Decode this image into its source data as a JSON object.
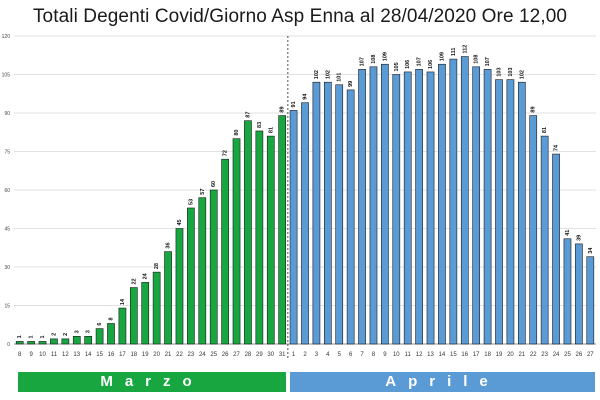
{
  "chart_data": {
    "type": "bar",
    "title": "Totali Degenti Covid/Giorno Asp Enna al 28/04/2020 Ore 12,00",
    "xlabel": "",
    "ylabel": "",
    "ylim": [
      0,
      120
    ],
    "yticks": [
      0,
      15,
      30,
      45,
      60,
      75,
      90,
      105,
      120
    ],
    "grid": true,
    "categories": [
      "8",
      "9",
      "10",
      "11",
      "12",
      "13",
      "14",
      "15",
      "16",
      "17",
      "18",
      "19",
      "20",
      "21",
      "22",
      "23",
      "24",
      "25",
      "26",
      "27",
      "28",
      "29",
      "30",
      "31",
      "1",
      "2",
      "3",
      "4",
      "5",
      "6",
      "7",
      "8",
      "9",
      "10",
      "11",
      "12",
      "13",
      "14",
      "15",
      "16",
      "17",
      "18",
      "19",
      "20",
      "21",
      "22",
      "23",
      "24",
      "25",
      "26",
      "27"
    ],
    "values": [
      1,
      1,
      1,
      2,
      2,
      3,
      3,
      6,
      8,
      14,
      22,
      24,
      28,
      36,
      45,
      53,
      57,
      60,
      72,
      80,
      87,
      83,
      81,
      89,
      91,
      94,
      102,
      102,
      101,
      99,
      107,
      108,
      109,
      105,
      106,
      107,
      106,
      109,
      111,
      112,
      108,
      107,
      103,
      103,
      102,
      89,
      81,
      74,
      41,
      39,
      34
    ],
    "bar_labels": [
      "1",
      "1",
      "1",
      "2",
      "2",
      "3",
      "3",
      "6",
      "8",
      "14",
      "22",
      "24",
      "28",
      "36",
      "45",
      "53",
      "57",
      "60",
      "72",
      "80",
      "87",
      "83",
      "81",
      "89",
      "91",
      "94",
      "102",
      "102",
      "101",
      "99",
      "107",
      "108",
      "109",
      "105",
      "106",
      "107",
      "106",
      "109",
      "111",
      "112",
      "108",
      "107",
      "103",
      "103",
      "102",
      "89",
      "81",
      "74",
      "41",
      "39",
      "34"
    ],
    "months": [
      {
        "label": "Marzo",
        "start": 0,
        "count": 24,
        "color": "#17a640"
      },
      {
        "label": "Aprile",
        "start": 24,
        "count": 27,
        "color": "#5b9bd5"
      }
    ],
    "divider_after_index": 23
  }
}
